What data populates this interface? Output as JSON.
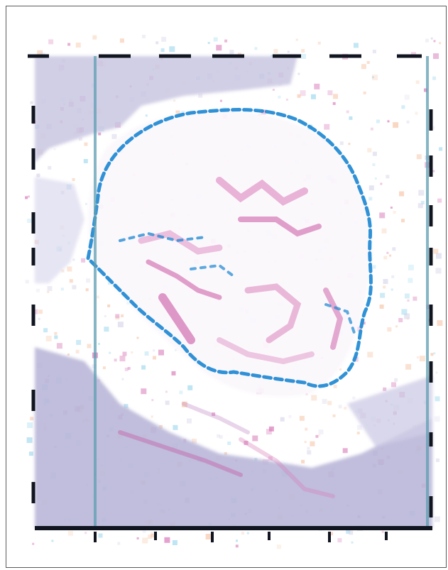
{
  "image": {
    "palette": {
      "background": "#ffffff",
      "frame_border": "#5a5a5a",
      "lavender_fill": "#b9b7d8",
      "pale_lavender": "#d8d6ea",
      "pink_strokes": "#d87ab8",
      "magenta_strokes": "#c6489a",
      "blue_outline": "#1a86d2",
      "teal_rule": "#5e9eb2",
      "dark_ticks": "#101520",
      "peach_noise": "#f6c6a8",
      "cyan_noise": "#9fd8ee"
    },
    "subject": "pixelated-portrait-profile"
  }
}
